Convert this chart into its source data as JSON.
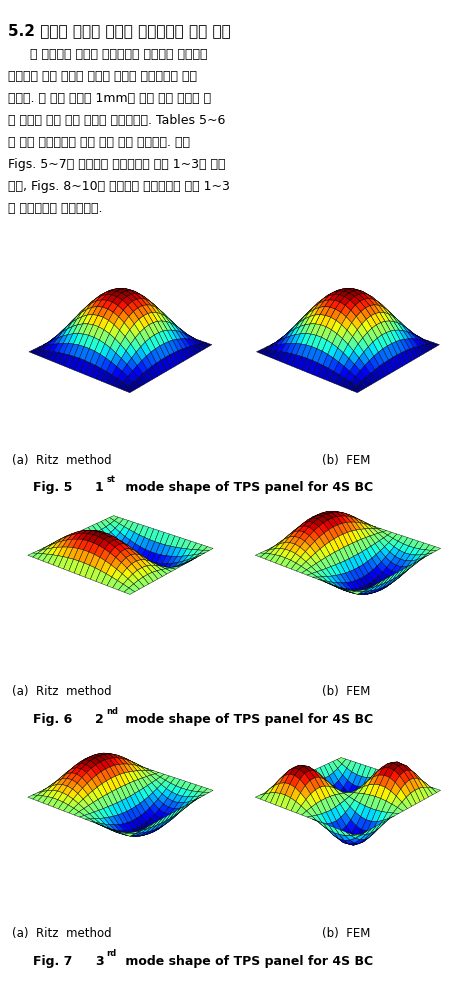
{
  "title_line": "5.2 열방어 시스템 패널의 모드해석을 통한 검증",
  "para1": "본 논문에서 제시한 근사모델의 전반적인 타당성을",
  "para2": "검증하기 위해 열방어 시스템 패널의 모드해석을 수행",
  "para3": "하여다. 각 층의 두께가 1mm인 균일 분포 하중을 받",
  "para4": "는 모델에 대해 모드 해석을 수행하여다. Tables 5~6",
  "para5": "은 각각 경계조건에 따른 모드 해석 결과이다. 또한",
  "para6": "Figs. 5~7은 단순지지 경계조건일 때의 1~3차 모드",
  "para7": "형상, Figs. 8~10은 고정지지 경계조건일 때의 1~3",
  "para8": "차 모드형상을 나타내었다.",
  "fig5_label_a": "(a)  Ritz  method",
  "fig5_label_b": "(b)  FEM",
  "fig5_caption": "Fig. 5",
  "fig5_caption_super": "1",
  "fig5_caption_rest": " mode shape of TPS panel for 4S BC",
  "fig6_label_a": "(a)  Ritz  method",
  "fig6_label_b": "(b)  FEM",
  "fig6_caption": "Fig. 6",
  "fig6_caption_super": "2",
  "fig6_caption_rest": " mode shape of TPS panel for 4S BC",
  "fig7_label_a": "(a)  Ritz  method",
  "fig7_label_b": "(b)  FEM",
  "fig7_caption": "Fig. 7",
  "fig7_caption_super": "3",
  "fig7_caption_rest": " mode shape of TPS panel for 4S BC",
  "bg_color": "#ffffff"
}
